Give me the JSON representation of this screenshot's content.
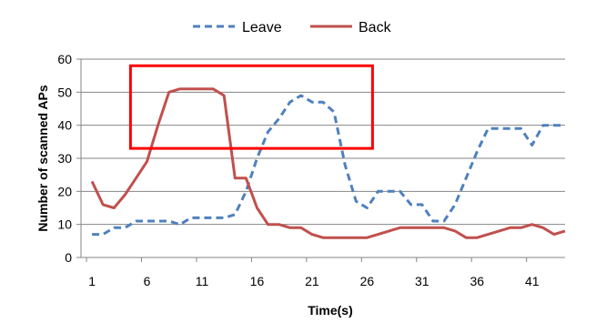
{
  "chart_data": {
    "type": "line",
    "title": "",
    "xlabel": "Time(s)",
    "ylabel": "Number of scanned APs",
    "xlim": [
      0,
      44
    ],
    "ylim": [
      0,
      60
    ],
    "xticks": [
      1,
      6,
      11,
      16,
      21,
      26,
      31,
      36,
      41
    ],
    "yticks": [
      0,
      10,
      20,
      30,
      40,
      50,
      60
    ],
    "grid": "horizontal",
    "legend_position": "top-center",
    "x": [
      1,
      2,
      3,
      4,
      5,
      6,
      7,
      8,
      9,
      10,
      11,
      12,
      13,
      14,
      15,
      16,
      17,
      18,
      19,
      20,
      21,
      22,
      23,
      24,
      25,
      26,
      27,
      28,
      29,
      30,
      31,
      32,
      33,
      34,
      35,
      36,
      37,
      38,
      39,
      40,
      41,
      42,
      43,
      44
    ],
    "series": [
      {
        "name": "Leave",
        "color": "#4f81bd",
        "style": "dashed",
        "values": [
          7,
          7,
          9,
          9,
          11,
          11,
          11,
          11,
          10,
          12,
          12,
          12,
          12,
          13,
          20,
          30,
          38,
          42,
          47,
          49,
          47,
          47,
          44,
          28,
          17,
          15,
          20,
          20,
          20,
          16,
          16,
          11,
          11,
          16,
          24,
          32,
          39,
          39,
          39,
          39,
          34,
          40,
          40,
          40
        ]
      },
      {
        "name": "Back",
        "color": "#c0504d",
        "style": "solid",
        "values": [
          23,
          16,
          15,
          19,
          24,
          29,
          40,
          50,
          51,
          51,
          51,
          51,
          49,
          24,
          24,
          15,
          10,
          10,
          9,
          9,
          7,
          6,
          6,
          6,
          6,
          6,
          7,
          8,
          9,
          9,
          9,
          9,
          9,
          8,
          6,
          6,
          7,
          8,
          9,
          9,
          10,
          9,
          7,
          8
        ]
      }
    ],
    "annotations": [
      {
        "type": "highlight-box",
        "color": "#ff0000",
        "x_range": [
          4.5,
          26.5
        ],
        "y_range": [
          33,
          58
        ]
      }
    ]
  }
}
